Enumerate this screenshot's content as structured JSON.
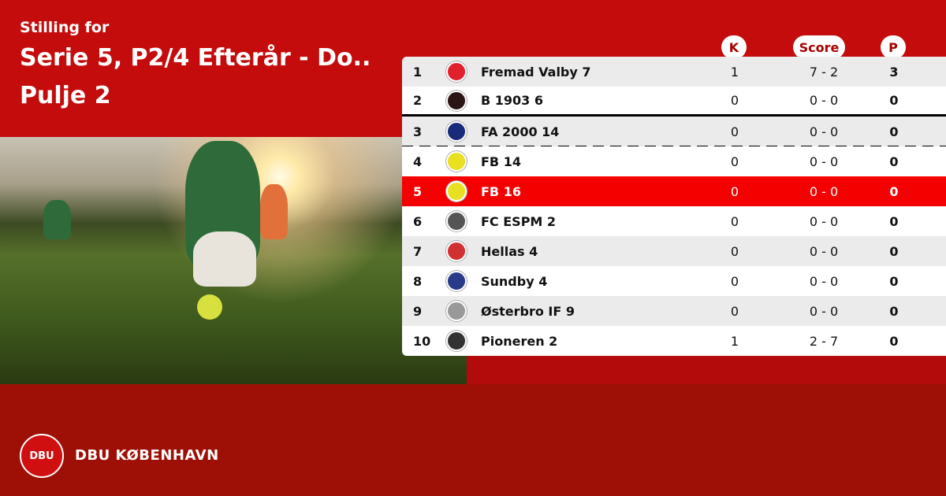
{
  "header": {
    "subtitle": "Stilling for",
    "title_line1": "Serie 5, P2/4 Efterår - Do..",
    "title_line2": "Pulje 2"
  },
  "columns": {
    "k": "K",
    "score": "Score",
    "p": "P"
  },
  "rows": [
    {
      "pos": "1",
      "team": "Fremad Valby 7",
      "k": "1",
      "score": "7 - 2",
      "p": "3",
      "logo_color": "#e0202a"
    },
    {
      "pos": "2",
      "team": "B 1903 6",
      "k": "0",
      "score": "0 - 0",
      "p": "0",
      "logo_color": "#2a1414"
    },
    {
      "pos": "3",
      "team": "FA 2000 14",
      "k": "0",
      "score": "0 - 0",
      "p": "0",
      "logo_color": "#1a2a7a"
    },
    {
      "pos": "4",
      "team": "FB 14",
      "k": "0",
      "score": "0 - 0",
      "p": "0",
      "logo_color": "#e8e020"
    },
    {
      "pos": "5",
      "team": "FB 16",
      "k": "0",
      "score": "0 - 0",
      "p": "0",
      "logo_color": "#e8e020",
      "highlighted": true
    },
    {
      "pos": "6",
      "team": "FC ESPM 2",
      "k": "0",
      "score": "0 - 0",
      "p": "0",
      "logo_color": "#555555"
    },
    {
      "pos": "7",
      "team": "Hellas 4",
      "k": "0",
      "score": "0 - 0",
      "p": "0",
      "logo_color": "#d03030"
    },
    {
      "pos": "8",
      "team": "Sundby 4",
      "k": "0",
      "score": "0 - 0",
      "p": "0",
      "logo_color": "#2a3a8a"
    },
    {
      "pos": "9",
      "team": "Østerbro IF 9",
      "k": "0",
      "score": "0 - 0",
      "p": "0",
      "logo_color": "#999999"
    },
    {
      "pos": "10",
      "team": "Pioneren 2",
      "k": "1",
      "score": "2 - 7",
      "p": "0",
      "logo_color": "#333333"
    }
  ],
  "footer": {
    "org": "DBU KØBENHAVN",
    "logo_text": "DBU"
  },
  "colors": {
    "brand_red": "#c40c0c",
    "footer_red": "#9e1006",
    "highlight": "#f50000"
  }
}
